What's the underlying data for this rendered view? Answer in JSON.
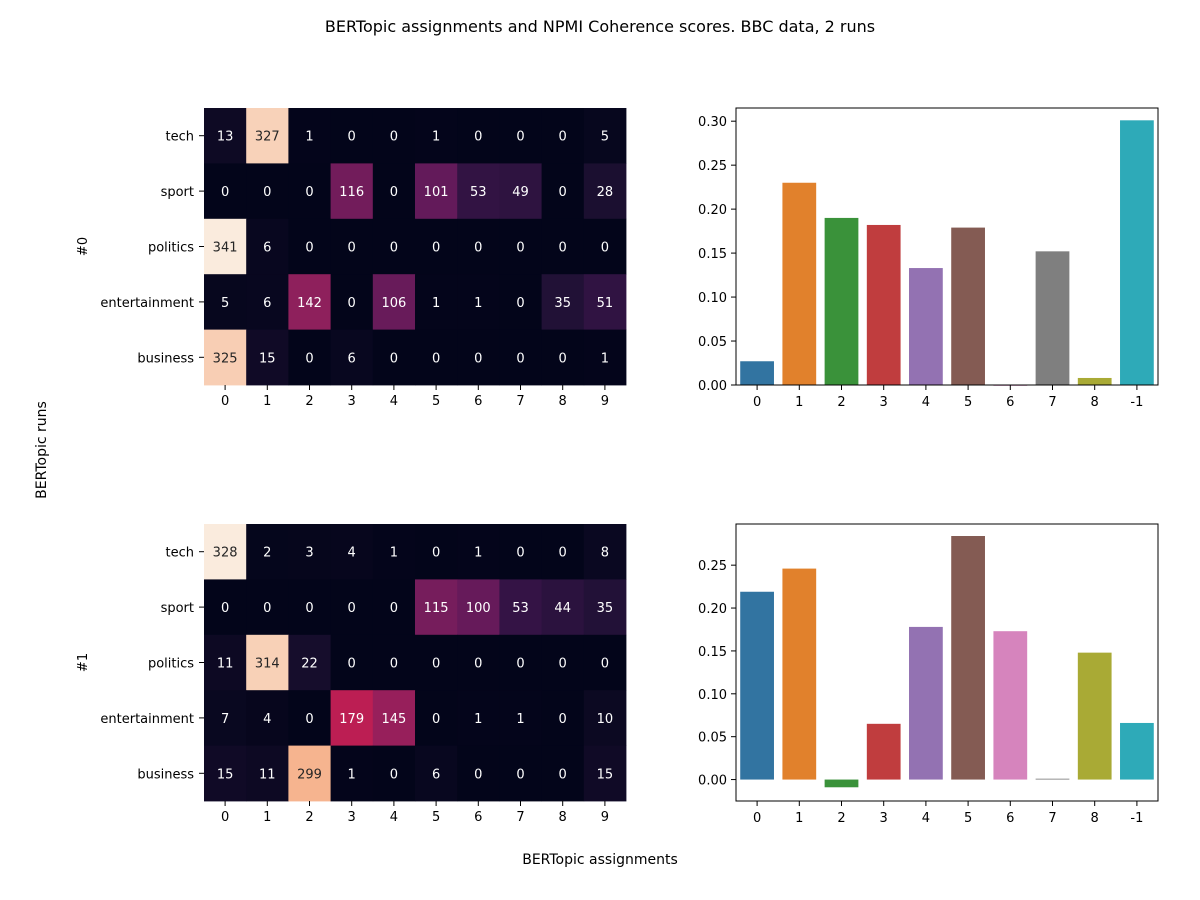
{
  "figure": {
    "title": "BERTopic assignments and NPMI Coherence scores. BBC data, 2 runs",
    "xlabel": "BERTopic assignments",
    "ylabel": "BERTopic runs"
  },
  "chart_data": [
    {
      "type": "heatmap",
      "run_label": "#0",
      "rows": [
        "tech",
        "sport",
        "politics",
        "entertainment",
        "business"
      ],
      "columns": [
        "0",
        "1",
        "2",
        "3",
        "4",
        "5",
        "6",
        "7",
        "8",
        "9"
      ],
      "values": [
        [
          13,
          327,
          1,
          0,
          0,
          1,
          0,
          0,
          0,
          5
        ],
        [
          0,
          0,
          0,
          116,
          0,
          101,
          53,
          49,
          0,
          28
        ],
        [
          341,
          6,
          0,
          0,
          0,
          0,
          0,
          0,
          0,
          0
        ],
        [
          5,
          6,
          142,
          0,
          106,
          1,
          1,
          0,
          35,
          51
        ],
        [
          325,
          15,
          0,
          6,
          0,
          0,
          0,
          0,
          0,
          1
        ]
      ],
      "colormap": "rocket",
      "color_max": 341
    },
    {
      "type": "bar",
      "categories": [
        "0",
        "1",
        "2",
        "3",
        "4",
        "5",
        "6",
        "7",
        "8",
        "-1"
      ],
      "values": [
        0.027,
        0.23,
        0.19,
        0.182,
        0.133,
        0.179,
        0.0,
        0.152,
        0.008,
        0.301
      ],
      "ylim": [
        0,
        0.315
      ],
      "yticks": [
        0.0,
        0.05,
        0.1,
        0.15,
        0.2,
        0.25,
        0.3
      ],
      "colors": [
        "#3274a1",
        "#e1812c",
        "#3a923a",
        "#c03d3e",
        "#9372b2",
        "#845b53",
        "#d684bd",
        "#7f7f7f",
        "#a9aa35",
        "#2eaab8"
      ]
    },
    {
      "type": "heatmap",
      "run_label": "#1",
      "rows": [
        "tech",
        "sport",
        "politics",
        "entertainment",
        "business"
      ],
      "columns": [
        "0",
        "1",
        "2",
        "3",
        "4",
        "5",
        "6",
        "7",
        "8",
        "9"
      ],
      "values": [
        [
          328,
          2,
          3,
          4,
          1,
          0,
          1,
          0,
          0,
          8
        ],
        [
          0,
          0,
          0,
          0,
          0,
          115,
          100,
          53,
          44,
          35
        ],
        [
          11,
          314,
          22,
          0,
          0,
          0,
          0,
          0,
          0,
          0
        ],
        [
          7,
          4,
          0,
          179,
          145,
          0,
          1,
          1,
          0,
          10
        ],
        [
          15,
          11,
          299,
          1,
          0,
          6,
          0,
          0,
          0,
          15
        ]
      ],
      "colormap": "rocket",
      "color_max": 328
    },
    {
      "type": "bar",
      "categories": [
        "0",
        "1",
        "2",
        "3",
        "4",
        "5",
        "6",
        "7",
        "8",
        "-1"
      ],
      "values": [
        0.219,
        0.246,
        -0.009,
        0.065,
        0.178,
        0.284,
        0.173,
        0.001,
        0.148,
        0.066
      ],
      "ylim": [
        -0.025,
        0.298
      ],
      "yticks": [
        0.0,
        0.05,
        0.1,
        0.15,
        0.2,
        0.25
      ],
      "colors": [
        "#3274a1",
        "#e1812c",
        "#3a923a",
        "#c03d3e",
        "#9372b2",
        "#845b53",
        "#d684bd",
        "#7f7f7f",
        "#a9aa35",
        "#2eaab8"
      ]
    }
  ]
}
